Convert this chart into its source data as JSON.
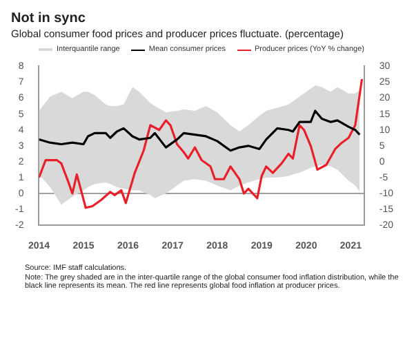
{
  "chart_data": {
    "type": "line",
    "title": "Not in sync",
    "subtitle": "Global consumer food prices and producer prices fluctuate. (percentage)",
    "series": [
      {
        "name": "Mean consumer prices",
        "color": "#000000",
        "x": [
          2014.0,
          2014.25,
          2014.5,
          2014.75,
          2015.0,
          2015.1,
          2015.25,
          2015.5,
          2015.6,
          2015.75,
          2015.9,
          2016.1,
          2016.25,
          2016.5,
          2016.6,
          2016.85,
          2017.1,
          2017.25,
          2017.5,
          2017.75,
          2018.0,
          2018.3,
          2018.5,
          2018.7,
          2018.95,
          2019.1,
          2019.35,
          2019.6,
          2019.7,
          2019.85,
          2020.1,
          2020.2,
          2020.35,
          2020.55,
          2020.7,
          2020.95,
          2021.1,
          2021.2
        ],
        "values": [
          3.4,
          3.2,
          3.1,
          3.2,
          3.1,
          3.6,
          3.8,
          3.8,
          3.5,
          3.9,
          4.1,
          3.6,
          3.4,
          3.5,
          3.8,
          2.9,
          3.4,
          3.8,
          3.7,
          3.6,
          3.3,
          2.7,
          2.9,
          3.0,
          2.8,
          3.4,
          4.1,
          4.0,
          3.9,
          4.5,
          4.5,
          5.2,
          4.7,
          4.5,
          4.6,
          4.2,
          4.0,
          3.7
        ],
        "upper": [
          5.2,
          6.1,
          6.4,
          6.0,
          6.4,
          6.4,
          6.2,
          5.6,
          5.5,
          5.5,
          5.6,
          6.7,
          6.4,
          5.7,
          5.5,
          5.1,
          5.2,
          5.3,
          5.2,
          5.5,
          5.1,
          4.3,
          3.9,
          4.3,
          4.9,
          5.2,
          5.4,
          5.6,
          5.8,
          6.1,
          6.6,
          6.8,
          6.7,
          6.4,
          6.7,
          6.3,
          6.3,
          6.5
        ],
        "lower": [
          1.2,
          0.4,
          -0.7,
          -0.2,
          0.2,
          0.4,
          0.6,
          0.7,
          0.6,
          0.4,
          0.3,
          0.2,
          0.2,
          -0.1,
          -0.3,
          0.0,
          0.5,
          0.8,
          0.9,
          0.8,
          0.5,
          0.2,
          0.5,
          0.7,
          0.9,
          1.0,
          1.0,
          1.1,
          1.2,
          1.3,
          1.6,
          1.7,
          1.8,
          1.7,
          1.5,
          0.8,
          0.5,
          0.1
        ]
      },
      {
        "name": "Producer prices (YoY % change)",
        "color": "#e8202a",
        "axis": "y2",
        "x": [
          2014.0,
          2014.15,
          2014.4,
          2014.5,
          2014.65,
          2014.75,
          2014.85,
          2015.05,
          2015.2,
          2015.4,
          2015.6,
          2015.7,
          2015.85,
          2015.95,
          2016.15,
          2016.35,
          2016.5,
          2016.7,
          2016.85,
          2016.95,
          2017.1,
          2017.25,
          2017.35,
          2017.5,
          2017.65,
          2017.85,
          2017.95,
          2018.15,
          2018.3,
          2018.5,
          2018.6,
          2018.7,
          2018.9,
          2019.0,
          2019.1,
          2019.25,
          2019.45,
          2019.6,
          2019.7,
          2019.85,
          2019.95,
          2020.1,
          2020.25,
          2020.45,
          2020.65,
          2020.8,
          2020.95,
          2021.1,
          2021.25
        ],
        "values": [
          -5,
          0.5,
          0.5,
          -0.5,
          -6,
          -10,
          -4,
          -14.5,
          -14,
          -12,
          -9.5,
          -10.5,
          -9,
          -13,
          -3.5,
          3.5,
          11.5,
          10,
          13,
          11.5,
          5.5,
          3,
          1,
          4.5,
          0.5,
          -1.5,
          -5.5,
          -5.5,
          -1.5,
          -5.5,
          -10,
          -8.5,
          -11.5,
          -4.5,
          -1.5,
          -3.5,
          -0.5,
          2.5,
          1,
          11.5,
          10,
          5,
          -2.5,
          -1,
          4,
          6,
          7.5,
          11.5,
          26
        ]
      }
    ],
    "xlim": [
      2014,
      2021.3
    ],
    "xticks": [
      2014,
      2015,
      2016,
      2017,
      2018,
      2019,
      2020,
      2021
    ],
    "ylim": [
      -2,
      8
    ],
    "yticks": [
      -2,
      -1,
      0,
      1,
      2,
      3,
      4,
      5,
      6,
      7,
      8
    ],
    "y2lim": [
      -20,
      30
    ],
    "y2ticks": [
      -20,
      -15,
      -10,
      -5,
      0,
      5,
      10,
      15,
      20,
      25,
      30
    ],
    "ref_lines": [
      {
        "axis": "y",
        "value": 0,
        "color": "#808080"
      }
    ],
    "grid": false,
    "legend": "top",
    "marker": "none",
    "line_style": "solid",
    "annotations": [
      "Interquantile range",
      "Source: IMF staff calculations.",
      "Note: The grey shaded are in the inter-quartile range of the global consumer food inflation distribution, while the black line represents its mean. The red line represents global food inflation at producer prices."
    ]
  }
}
